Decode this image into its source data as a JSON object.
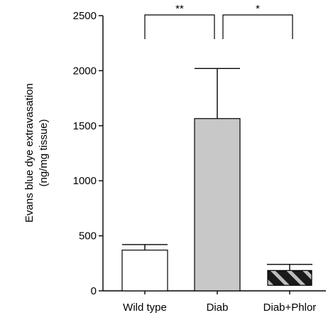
{
  "chart_data": {
    "type": "bar",
    "categories": [
      "Wild type",
      "Diab",
      "Diab+Phlor"
    ],
    "values": [
      370,
      1565,
      185
    ],
    "error_upper": [
      420,
      2020,
      240
    ],
    "bar_fills": [
      "#ffffff",
      "#c8c8c8",
      "hatched-black-gray"
    ],
    "ylabel_lines": [
      "Evans blue dye extravasation",
      "(ng/mg tissue)"
    ],
    "xlabel": "",
    "ylim": [
      0,
      2500
    ],
    "yticks": [
      0,
      500,
      1000,
      1500,
      2000,
      2500
    ],
    "grid": false,
    "significance": [
      {
        "from": "Wild type",
        "to": "Diab",
        "label": "**"
      },
      {
        "from": "Diab",
        "to": "Diab+Phlor",
        "label": "*"
      }
    ]
  }
}
